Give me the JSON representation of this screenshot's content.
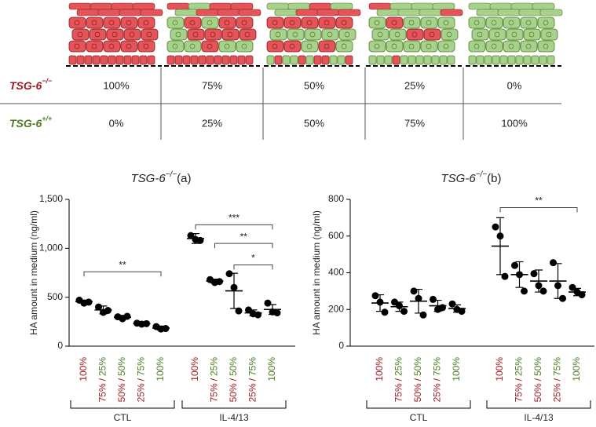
{
  "table": {
    "rows": [
      {
        "label": "TSG-6",
        "superscript": "−/−",
        "color": "#a01c22",
        "cells": [
          "100%",
          "75%",
          "50%",
          "25%",
          "0%"
        ]
      },
      {
        "label": "TSG-6",
        "superscript": "+/+",
        "color": "#4d7d23",
        "cells": [
          "0%",
          "25%",
          "50%",
          "75%",
          "100%"
        ]
      }
    ]
  },
  "chart_data": [
    {
      "type": "dotplot",
      "title": "TSG-6",
      "title_superscript": "−/−",
      "title_suffix": "(a)",
      "y_label": "HA amount in medium (ng/ml)",
      "ylim": [
        0,
        1500
      ],
      "yticks": [
        0,
        500,
        {
          "value": 1000,
          "label": "1,000"
        },
        {
          "value": 1500,
          "label": "1,500"
        }
      ],
      "categories": [
        [
          "100%"
        ],
        [
          "75%",
          "/",
          "25%"
        ],
        [
          "50%",
          "/",
          "50%"
        ],
        [
          "25%",
          "/",
          "75%"
        ],
        [
          "100%"
        ],
        [
          "100%"
        ],
        [
          "75%",
          "/",
          "25%"
        ],
        [
          "50%",
          "/",
          "50%"
        ],
        [
          "25%",
          "/",
          "75%"
        ],
        [
          "100%"
        ]
      ],
      "category_colors": [
        [
          "#a01c22"
        ],
        [
          "#a01c22",
          "#a01c22",
          "#4d7d23"
        ],
        [
          "#a01c22",
          "#a01c22",
          "#4d7d23"
        ],
        [
          "#a01c22",
          "#a01c22",
          "#4d7d23"
        ],
        [
          "#4d7d23"
        ],
        [
          "#a01c22"
        ],
        [
          "#a01c22",
          "#a01c22",
          "#4d7d23"
        ],
        [
          "#a01c22",
          "#a01c22",
          "#4d7d23"
        ],
        [
          "#a01c22",
          "#a01c22",
          "#4d7d23"
        ],
        [
          "#4d7d23"
        ]
      ],
      "groups": [
        {
          "label": "CTL",
          "count": 5
        },
        {
          "label": "IL-4/13",
          "count": 5
        }
      ],
      "color": "#000000",
      "points": [
        [
          470,
          440,
          450
        ],
        [
          400,
          345,
          365
        ],
        [
          300,
          280,
          305
        ],
        [
          235,
          225,
          230
        ],
        [
          200,
          175,
          180
        ],
        [
          1130,
          1090,
          1080
        ],
        [
          680,
          650,
          660
        ],
        [
          740,
          600,
          360
        ],
        [
          370,
          330,
          320
        ],
        [
          440,
          350,
          340
        ]
      ],
      "mean": [
        455,
        370,
        295,
        230,
        185,
        1100,
        665,
        565,
        340,
        375
      ],
      "sd": [
        15,
        40,
        20,
        10,
        20,
        50,
        20,
        180,
        30,
        50
      ],
      "brackets": [
        {
          "from": 0,
          "to": 4,
          "y": 760,
          "label": "**"
        },
        {
          "from": 5,
          "to": 9,
          "y": 1240,
          "label": "***"
        },
        {
          "from": 6,
          "to": 9,
          "y": 1050,
          "label": "**"
        },
        {
          "from": 7,
          "to": 9,
          "y": 830,
          "label": "*"
        }
      ]
    },
    {
      "type": "dotplot",
      "title": "TSG-6",
      "title_superscript": "−/−",
      "title_suffix": "(b)",
      "y_label": "HA amount in medium (ng/ml)",
      "ylim": [
        0,
        800
      ],
      "yticks": [
        0,
        200,
        400,
        600,
        800
      ],
      "categories": [
        [
          "100%"
        ],
        [
          "75%",
          "/",
          "25%"
        ],
        [
          "50%",
          "/",
          "50%"
        ],
        [
          "25%",
          "/",
          "75%"
        ],
        [
          "100%"
        ],
        [
          "100%"
        ],
        [
          "75%",
          "/",
          "25%"
        ],
        [
          "50%",
          "/",
          "50%"
        ],
        [
          "25%",
          "/",
          "75%"
        ],
        [
          "100%"
        ]
      ],
      "category_colors": [
        [
          "#a01c22"
        ],
        [
          "#a01c22",
          "#a01c22",
          "#4d7d23"
        ],
        [
          "#a01c22",
          "#a01c22",
          "#4d7d23"
        ],
        [
          "#a01c22",
          "#a01c22",
          "#4d7d23"
        ],
        [
          "#4d7d23"
        ],
        [
          "#a01c22"
        ],
        [
          "#a01c22",
          "#a01c22",
          "#4d7d23"
        ],
        [
          "#a01c22",
          "#a01c22",
          "#4d7d23"
        ],
        [
          "#a01c22",
          "#a01c22",
          "#4d7d23"
        ],
        [
          "#4d7d23"
        ]
      ],
      "groups": [
        {
          "label": "CTL",
          "count": 5
        },
        {
          "label": "IL-4/13",
          "count": 5
        }
      ],
      "color": "#000000",
      "points": [
        [
          275,
          240,
          185
        ],
        [
          240,
          220,
          190
        ],
        [
          300,
          260,
          170
        ],
        [
          255,
          200,
          210
        ],
        [
          230,
          200,
          190
        ],
        [
          650,
          600,
          380
        ],
        [
          440,
          390,
          300
        ],
        [
          395,
          330,
          300
        ],
        [
          455,
          330,
          260
        ],
        [
          320,
          295,
          280
        ]
      ],
      "mean": [
        235,
        215,
        245,
        220,
        205,
        545,
        390,
        355,
        355,
        295
      ],
      "sd": [
        45,
        25,
        65,
        30,
        20,
        155,
        70,
        60,
        95,
        20
      ],
      "brackets": [
        {
          "from": 5,
          "to": 9,
          "y": 755,
          "label": "**"
        }
      ]
    }
  ]
}
